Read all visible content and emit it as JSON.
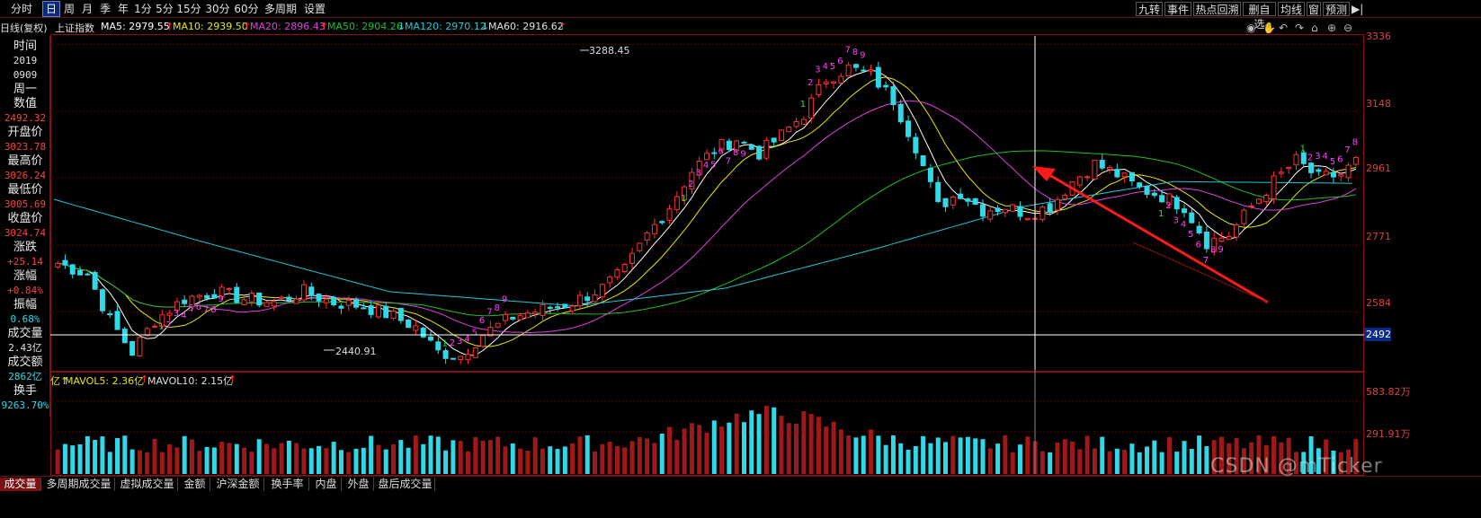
{
  "toolbar": {
    "left_buttons": [
      {
        "label": "分时",
        "active": false
      },
      {
        "label": "日",
        "active": true
      },
      {
        "label": "周",
        "active": false
      },
      {
        "label": "月",
        "active": false
      },
      {
        "label": "季",
        "active": false
      },
      {
        "label": "年",
        "active": false
      },
      {
        "label": "1分",
        "active": false
      },
      {
        "label": "5分",
        "active": false
      },
      {
        "label": "15分",
        "active": false
      },
      {
        "label": "30分",
        "active": false
      },
      {
        "label": "60分",
        "active": false
      },
      {
        "label": "多周期",
        "active": false
      },
      {
        "label": "设置",
        "active": false
      }
    ],
    "right_buttons": [
      "九转",
      "事件",
      "热点回溯",
      "删自选",
      "均线",
      "窗",
      "预测"
    ]
  },
  "ma_bar": {
    "period_label": "日线(复权)",
    "index_name": "上证指数",
    "ma5": "MA5: 2979.55",
    "ma5_arrow": "↑",
    "ma10": "MA10: 2939.50",
    "ma10_arrow": "↑",
    "ma20": "MA20: 2896.43",
    "ma20_arrow": "↑",
    "ma50": "MA50: 2904.26",
    "ma50_arrow": "↓",
    "ma120": "MA120: 2970.12",
    "ma120_arrow": "↓",
    "ma60": "MA60: 2916.62",
    "ma60_arrow": "↑"
  },
  "info_panel": {
    "time_label": "时间",
    "year": "2019",
    "date": "0909",
    "weekday": "周一",
    "value_label": "数值",
    "value": "2492.32",
    "open_label": "开盘价",
    "open": "3023.78",
    "high_label": "最高价",
    "high": "3026.24",
    "low_label": "最低价",
    "low": "3005.69",
    "close_label": "收盘价",
    "close": "3024.74",
    "change_label": "涨跌",
    "change": "+25.14",
    "pct_label": "涨幅",
    "pct": "+0.84%",
    "amp_label": "振幅",
    "amp": "0.68%",
    "vol_label": "成交量",
    "vol": "2.43亿",
    "amount_label": "成交额",
    "amount": "2862亿",
    "turnover_label": "换手",
    "turnover": "9263.70%"
  },
  "price_axis": {
    "ticks": [
      "3336",
      "3148",
      "2961",
      "2771",
      "2584"
    ],
    "cursor_value": "2492",
    "high_annotation": "3288.45",
    "low_annotation": "2440.91"
  },
  "volume_bar": {
    "prefix": "亿↑",
    "mavol5": "MAVOL5: 2.36亿",
    "mavol5_arrow": "↑",
    "mavol10": "MAVOL10: 2.15亿",
    "mavol10_arrow": "↑",
    "ticks": [
      "583.82万",
      "291.91万"
    ]
  },
  "bottom_tabs": [
    "成交量",
    "多周期成交量",
    "虚拟成交量",
    "金额",
    "沪深金额",
    "换手率",
    "内盘",
    "外盘",
    "盘后成交量"
  ],
  "watermark": "CSDN @mTicker",
  "colors": {
    "up": "#ff3030",
    "down": "#2fd9e8",
    "ma5": "#ffffff",
    "ma10": "#e8e800",
    "ma20": "#e040e0",
    "ma50": "#20c020",
    "ma120": "#20c8d8",
    "arrow": "#ff1a1a"
  },
  "chart_data": {
    "type": "candlestick",
    "ylim": [
      2420,
      3360
    ],
    "x_range": [
      "2019-01",
      "2019-09-09"
    ],
    "note_marks": [
      "9",
      "8",
      "7",
      "6",
      "5",
      "4",
      "3",
      "2",
      "1"
    ]
  }
}
